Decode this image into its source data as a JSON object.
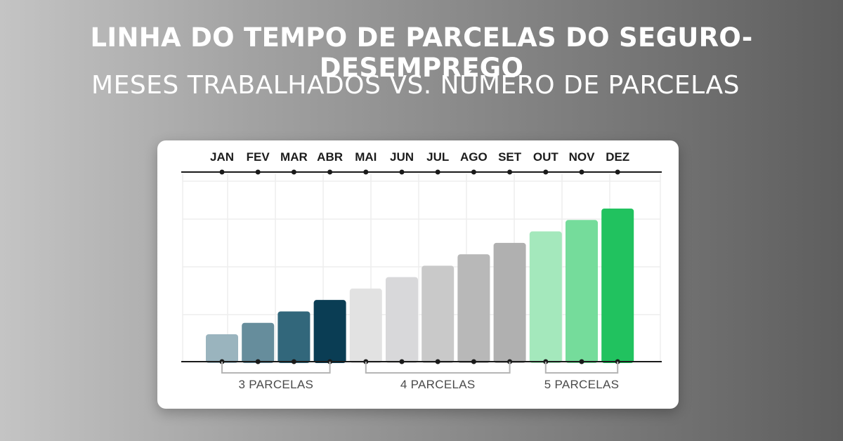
{
  "title": "LINHA DO TEMPO DE PARCELAS DO SEGURO-DESEMPREGO",
  "subtitle": "MESES TRABALHADOS VS. NÚMERO DE PARCELAS",
  "chart_data": {
    "type": "bar",
    "title": "",
    "categories": [
      "JAN",
      "FEV",
      "MAR",
      "ABR",
      "MAI",
      "JUN",
      "JUL",
      "AGO",
      "SET",
      "OUT",
      "NOV",
      "DEZ"
    ],
    "values": [
      1,
      2,
      3,
      4,
      5,
      6,
      7,
      8,
      9,
      10,
      11,
      12
    ],
    "colors": [
      "#9ab4be",
      "#668d9c",
      "#32677b",
      "#0a3d54",
      "#e2e2e2",
      "#d8d8da",
      "#c9c9c9",
      "#b8b8b8",
      "#b0b0b0",
      "#a4e8bc",
      "#75dc9b",
      "#21c25f"
    ],
    "groups": [
      {
        "label": "3 PARCELAS",
        "from": "JAN",
        "to": "ABR"
      },
      {
        "label": "4 PARCELAS",
        "from": "MAI",
        "to": "SET"
      },
      {
        "label": "5 PARCELAS",
        "from": "OUT",
        "to": "DEZ"
      }
    ],
    "grid": true,
    "xlabel": "",
    "ylabel": ""
  }
}
